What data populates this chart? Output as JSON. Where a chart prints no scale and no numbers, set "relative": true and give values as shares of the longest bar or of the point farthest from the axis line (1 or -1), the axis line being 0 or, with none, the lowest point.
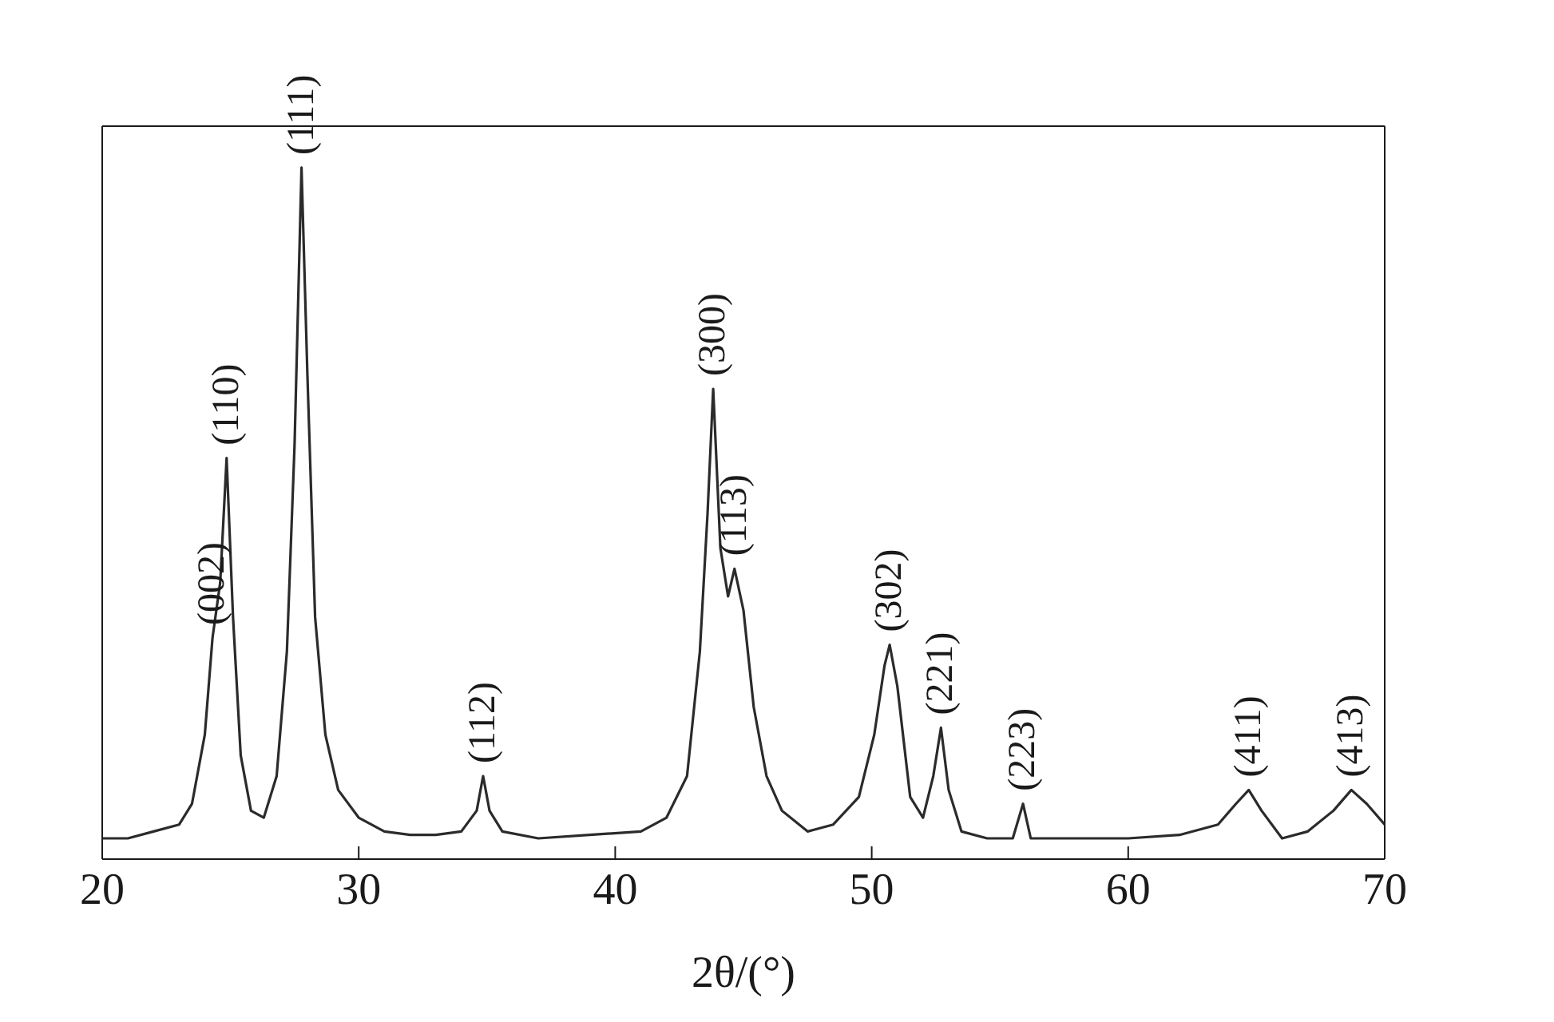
{
  "chart_data": {
    "type": "line",
    "relative": true,
    "xlabel": "2θ/(°)",
    "xlim": [
      20,
      70
    ],
    "xticks": [
      20,
      30,
      40,
      50,
      60,
      70
    ],
    "marker": "none",
    "line_style": "solid",
    "x": [
      20,
      21,
      22,
      23,
      23.5,
      24,
      24.3,
      24.6,
      24.85,
      25.1,
      25.4,
      25.8,
      26.3,
      26.8,
      27.2,
      27.5,
      27.77,
      28.0,
      28.3,
      28.7,
      29.2,
      30,
      31,
      32,
      33,
      34,
      34.6,
      34.85,
      35.1,
      35.6,
      37,
      39,
      41,
      42,
      42.8,
      43.3,
      43.6,
      43.82,
      44.1,
      44.4,
      44.65,
      45.0,
      45.4,
      45.9,
      46.5,
      47.5,
      48.5,
      49.5,
      50.1,
      50.5,
      50.7,
      51.0,
      51.5,
      52.0,
      52.4,
      52.7,
      53.0,
      53.5,
      54.5,
      55.5,
      55.9,
      56.2,
      58,
      60,
      62,
      63.5,
      64.2,
      64.7,
      65.2,
      66,
      67,
      68,
      68.7,
      69.3,
      70
    ],
    "series": [
      {
        "color": "#2b2b2b",
        "values": [
          0.03,
          0.03,
          0.04,
          0.05,
          0.08,
          0.18,
          0.32,
          0.4,
          0.58,
          0.35,
          0.15,
          0.07,
          0.06,
          0.12,
          0.3,
          0.6,
          1.0,
          0.7,
          0.35,
          0.18,
          0.1,
          0.06,
          0.04,
          0.035,
          0.035,
          0.04,
          0.07,
          0.12,
          0.07,
          0.04,
          0.03,
          0.035,
          0.04,
          0.06,
          0.12,
          0.3,
          0.5,
          0.68,
          0.45,
          0.38,
          0.42,
          0.36,
          0.22,
          0.12,
          0.07,
          0.04,
          0.05,
          0.09,
          0.18,
          0.28,
          0.31,
          0.25,
          0.09,
          0.06,
          0.12,
          0.19,
          0.1,
          0.04,
          0.03,
          0.03,
          0.08,
          0.03,
          0.03,
          0.03,
          0.035,
          0.05,
          0.08,
          0.1,
          0.07,
          0.03,
          0.04,
          0.07,
          0.1,
          0.08,
          0.05
        ]
      }
    ],
    "annotations": [
      {
        "text": "(002)",
        "x": 24.3,
        "y": 0.32
      },
      {
        "text": "(110)",
        "x": 24.85,
        "y": 0.58
      },
      {
        "text": "(111)",
        "x": 27.77,
        "y": 1.0
      },
      {
        "text": "(112)",
        "x": 34.85,
        "y": 0.12
      },
      {
        "text": "(300)",
        "x": 43.82,
        "y": 0.68
      },
      {
        "text": "(113)",
        "x": 44.65,
        "y": 0.42
      },
      {
        "text": "(302)",
        "x": 50.7,
        "y": 0.31
      },
      {
        "text": "(221)",
        "x": 52.7,
        "y": 0.19
      },
      {
        "text": "(223)",
        "x": 55.9,
        "y": 0.08
      },
      {
        "text": "(411)",
        "x": 64.7,
        "y": 0.1
      },
      {
        "text": "(413)",
        "x": 68.7,
        "y": 0.1
      }
    ]
  }
}
